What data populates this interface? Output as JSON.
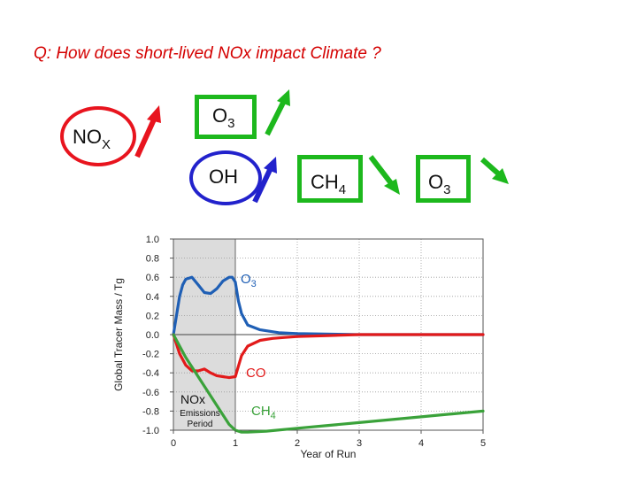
{
  "question": "Q:  How does short-lived NOx impact Climate ?",
  "diagram": {
    "nox": {
      "main": "NO",
      "sub": "X"
    },
    "o3_top": {
      "main": "O",
      "sub": "3"
    },
    "oh": {
      "main": "OH",
      "sub": ""
    },
    "ch4": {
      "main": "CH",
      "sub": "4"
    },
    "o3_right": {
      "main": "O",
      "sub": "3"
    },
    "colors": {
      "red": "#e8141e",
      "green": "#1db81d",
      "blue": "#2222cc"
    }
  },
  "chart_data": {
    "type": "line",
    "xlabel": "Year of Run",
    "ylabel": "Global Tracer Mass / Tg",
    "xlim": [
      0,
      5
    ],
    "ylim": [
      -1.0,
      1.0
    ],
    "xticks": [
      "0",
      "1",
      "2",
      "3",
      "4",
      "5"
    ],
    "yticks": [
      "1.0",
      "0.8",
      "0.6",
      "0.4",
      "0.2",
      "0.0",
      "-0.2",
      "-0.4",
      "-0.6",
      "-0.8",
      "-1.0"
    ],
    "shaded_period": {
      "x": [
        0,
        1
      ],
      "label_main": "NOx",
      "label_sub1": "Emissions",
      "label_sub2": "Period"
    },
    "series": [
      {
        "name": "O3",
        "color": "#1f5fb5",
        "x": [
          0,
          0.05,
          0.1,
          0.15,
          0.2,
          0.3,
          0.4,
          0.5,
          0.6,
          0.7,
          0.8,
          0.9,
          0.95,
          1.0,
          1.05,
          1.1,
          1.2,
          1.4,
          1.7,
          2.0,
          3.0,
          4.0,
          5.0
        ],
        "y": [
          0.0,
          0.2,
          0.4,
          0.52,
          0.58,
          0.6,
          0.52,
          0.44,
          0.43,
          0.48,
          0.56,
          0.6,
          0.6,
          0.55,
          0.35,
          0.22,
          0.1,
          0.05,
          0.02,
          0.01,
          0.0,
          0.0,
          0.0
        ]
      },
      {
        "name": "CO",
        "color": "#e21a1a",
        "x": [
          0,
          0.1,
          0.2,
          0.3,
          0.4,
          0.5,
          0.6,
          0.7,
          0.8,
          0.9,
          1.0,
          1.05,
          1.1,
          1.2,
          1.4,
          1.6,
          1.8,
          2.0,
          2.5,
          3.0,
          4.0,
          5.0
        ],
        "y": [
          0.0,
          -0.2,
          -0.32,
          -0.38,
          -0.38,
          -0.36,
          -0.4,
          -0.43,
          -0.44,
          -0.45,
          -0.44,
          -0.33,
          -0.22,
          -0.12,
          -0.06,
          -0.04,
          -0.03,
          -0.02,
          -0.01,
          0.0,
          0.0,
          0.0
        ]
      },
      {
        "name": "CH4",
        "color": "#3aa23a",
        "x": [
          0,
          0.2,
          0.4,
          0.6,
          0.8,
          0.9,
          1.0,
          1.1,
          1.2,
          1.5,
          2.0,
          2.5,
          3.0,
          3.5,
          4.0,
          4.5,
          5.0
        ],
        "y": [
          0.0,
          -0.24,
          -0.44,
          -0.64,
          -0.84,
          -0.94,
          -1.0,
          -1.02,
          -1.02,
          -1.01,
          -0.98,
          -0.95,
          -0.92,
          -0.89,
          -0.86,
          -0.83,
          -0.8
        ]
      }
    ],
    "labels": {
      "o3": {
        "main": "O",
        "sub": "3"
      },
      "co": {
        "main": "CO",
        "sub": ""
      },
      "ch4": {
        "main": "CH",
        "sub": "4"
      }
    }
  }
}
